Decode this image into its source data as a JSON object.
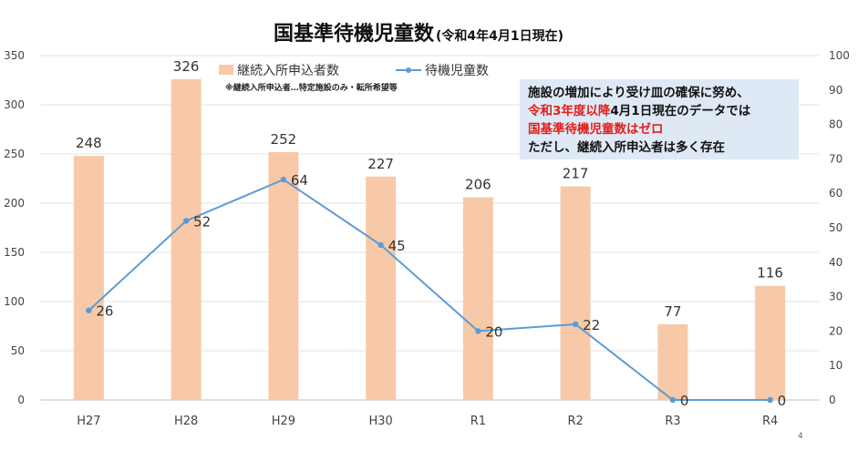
{
  "chart_data": {
    "type": "bar+line",
    "title": "国基準待機児童数",
    "subtitle": "(令和4年4月1日現在)",
    "categories": [
      "H27",
      "H28",
      "H29",
      "H30",
      "R1",
      "R2",
      "R3",
      "R4"
    ],
    "series": [
      {
        "name": "継続入所申込者数",
        "type": "bar",
        "axis": "left",
        "values": [
          248,
          326,
          252,
          227,
          206,
          217,
          77,
          116
        ],
        "color": "#f8c9a8"
      },
      {
        "name": "待機児童数",
        "type": "line",
        "axis": "right",
        "values": [
          26,
          52,
          64,
          45,
          20,
          22,
          0,
          0
        ],
        "color": "#5b9bd5"
      }
    ],
    "y_left": {
      "min": 0,
      "max": 350,
      "step": 50
    },
    "y_right": {
      "min": 0,
      "max": 100,
      "step": 10
    },
    "legend_placement": "top-left",
    "legend_note": "※継続入所申込者…特定施設のみ・転所希望等",
    "grid": true
  },
  "callout": {
    "line1": "施設の増加により受け皿の確保に努め、",
    "line2_red": "令和3年度以降",
    "line2_rest": "4月1日現在のデータでは",
    "line3_red": "国基準待機児童数はゼロ",
    "line4": "ただし、継続入所申込者は多く存在"
  },
  "page_number": "4"
}
